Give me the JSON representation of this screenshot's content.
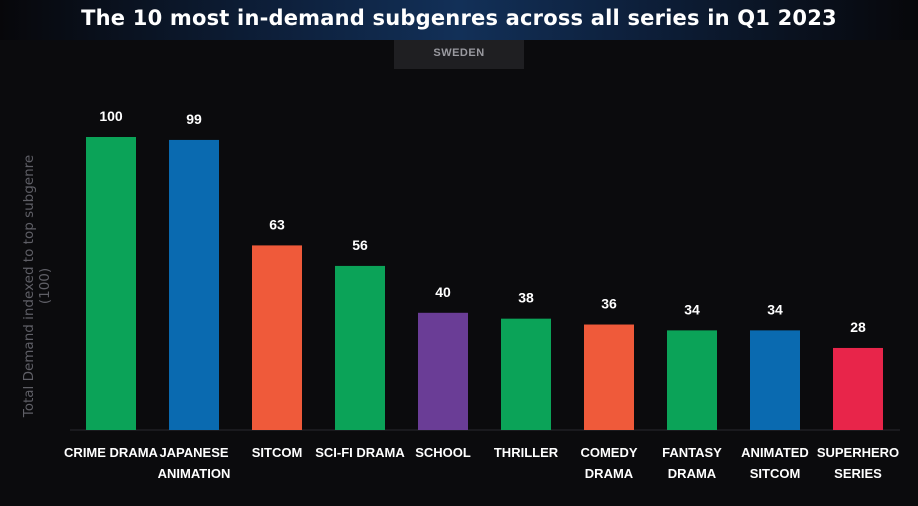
{
  "chart_data": {
    "type": "bar",
    "title": "The 10 most in-demand subgenres across all series in Q1 2023",
    "subtitle": "SWEDEN",
    "xlabel": "",
    "ylabel": "Total Demand indexed to top subgenre (100)",
    "ylim": [
      0,
      100
    ],
    "grid": false,
    "legend": "none",
    "categories": [
      [
        "CRIME DRAMA"
      ],
      [
        "JAPANESE",
        "ANIMATION"
      ],
      [
        "SITCOM"
      ],
      [
        "SCI-FI DRAMA"
      ],
      [
        "SCHOOL"
      ],
      [
        "THRILLER"
      ],
      [
        "COMEDY",
        "DRAMA"
      ],
      [
        "FANTASY",
        "DRAMA"
      ],
      [
        "ANIMATED",
        "SITCOM"
      ],
      [
        "SUPERHERO",
        "SERIES"
      ]
    ],
    "values": [
      100,
      99,
      63,
      56,
      40,
      38,
      36,
      34,
      34,
      28
    ],
    "colors": [
      "#0ba358",
      "#0a6ab0",
      "#ef5a3a",
      "#0ba358",
      "#6a3d96",
      "#0ba358",
      "#ef5a3a",
      "#0ba358",
      "#0a6ab0",
      "#e8254a"
    ]
  }
}
